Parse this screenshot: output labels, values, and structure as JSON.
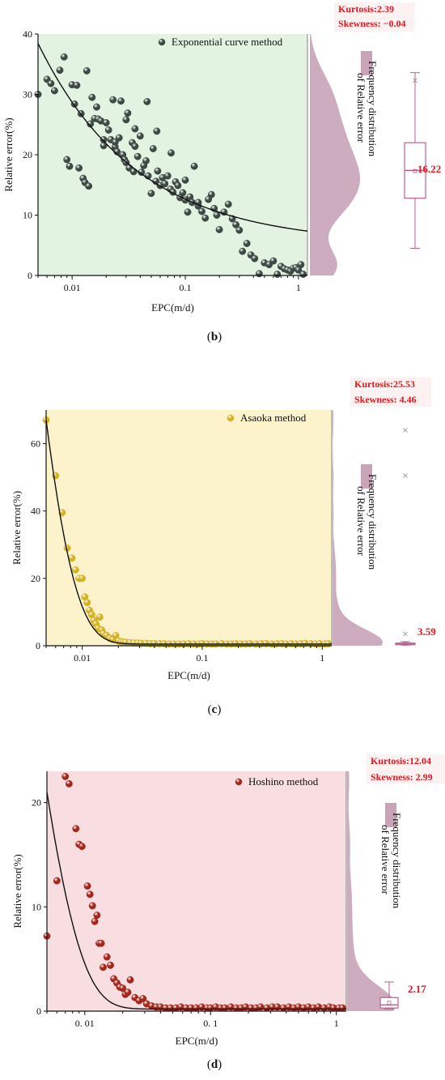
{
  "figure": {
    "background": "#ffffff"
  },
  "chart_data": [
    {
      "id": "b",
      "type": "scatter",
      "panel_label": "b",
      "xlabel": "EPC(m/d)",
      "ylabel": "Relative error(%)",
      "xscale": "log",
      "xlim": [
        0.005,
        1.2
      ],
      "ylim": [
        0,
        40
      ],
      "x_ticks": [
        0.01,
        0.1,
        1
      ],
      "x_tick_labels": [
        "0.01",
        "0.1",
        "1"
      ],
      "y_ticks": [
        0,
        10,
        20,
        30,
        40
      ],
      "y_tick_labels": [
        "0",
        "10",
        "20",
        "30",
        "40"
      ],
      "grid": false,
      "legend": {
        "position": "top-right",
        "label": "Exponential curve method"
      },
      "plot_bg": "#e3f3e2",
      "point_color": "#3d4a43",
      "kurtosis_label": "Kurtosis:2.39",
      "skewness_label": "Skewness: −0.04",
      "median_label": "16.22",
      "dist_label_line1": "Frequency distribution",
      "dist_label_line2": "of Relative error",
      "dist_color": "#c9a3b8",
      "box": {
        "min": 4.5,
        "q1": 12.8,
        "median": 17.4,
        "q3": 22.0,
        "max": 33.6,
        "mean": 17.3,
        "outliers": [
          32.3
        ]
      },
      "fit": {
        "a": 1.6,
        "b": 4.6,
        "c": 2.5
      },
      "series": [
        {
          "x": [
            0.005,
            0.006,
            0.0065,
            0.007,
            0.0078,
            0.0085,
            0.009,
            0.01,
            0.011,
            0.012,
            0.0125,
            0.013,
            0.0135,
            0.014,
            0.015,
            0.0158,
            0.0165,
            0.017,
            0.018,
            0.019,
            0.02,
            0.021,
            0.022,
            0.023,
            0.024,
            0.025,
            0.026,
            0.027,
            0.028,
            0.029,
            0.03,
            0.031,
            0.032,
            0.034,
            0.035,
            0.036,
            0.038,
            0.04,
            0.041,
            0.043,
            0.045,
            0.047,
            0.05,
            0.052,
            0.055,
            0.057,
            0.06,
            0.063,
            0.066,
            0.07,
            0.074,
            0.078,
            0.082,
            0.086,
            0.09,
            0.095,
            0.1,
            0.105,
            0.11,
            0.115,
            0.12,
            0.13,
            0.14,
            0.15,
            0.16,
            0.17,
            0.18,
            0.19,
            0.2,
            0.22,
            0.24,
            0.26,
            0.28,
            0.3,
            0.32,
            0.35,
            0.38,
            0.41,
            0.45,
            0.5,
            0.55,
            0.6,
            0.65,
            0.7,
            0.75,
            0.8,
            0.85,
            0.9,
            0.95,
            1.0,
            1.05,
            1.1,
            0.0095,
            0.0105,
            0.0115,
            0.0145,
            0.019,
            0.024,
            0.03,
            0.036,
            0.046,
            0.056,
            0.075,
            0.1,
            0.13
          ],
          "y": [
            30,
            32.5,
            31.8,
            30.6,
            34,
            36.2,
            19.2,
            31.6,
            31.5,
            26.8,
            16.1,
            15.4,
            33.9,
            14.8,
            29.5,
            26,
            27.9,
            25.9,
            25.6,
            21.5,
            25.3,
            24.1,
            22.5,
            29.1,
            21.3,
            20.5,
            22.8,
            28.9,
            20,
            19.2,
            18.7,
            26.9,
            17.8,
            22,
            17.2,
            21.4,
            19.7,
            23.1,
            17.1,
            18.2,
            19,
            16.5,
            13.6,
            21,
            15.6,
            17.3,
            14.9,
            16.2,
            15.2,
            16.5,
            14.3,
            13.8,
            15.5,
            14.9,
            12.9,
            13.7,
            12.5,
            10.5,
            13,
            12.1,
            18.1,
            11.5,
            10.6,
            9.5,
            12.6,
            13.4,
            11.1,
            10,
            7.6,
            10.5,
            11.8,
            9.4,
            8.4,
            7.5,
            4,
            5.3,
            3.4,
            2.8,
            0.3,
            2.1,
            1.8,
            2.4,
            0.2,
            1.5,
            1.1,
            0.9,
            0.7,
            1.2,
            1.3,
            0.9,
            1.8,
            0.2,
            18.1,
            28.4,
            17.8,
            25.1,
            22.5,
            22.1,
            25.8,
            24.3,
            28.8,
            23.9,
            20.3,
            15.8,
            12.1
          ]
        }
      ]
    },
    {
      "id": "c",
      "type": "scatter",
      "panel_label": "c",
      "xlabel": "EPC(m/d)",
      "ylabel": "Relative error(%)",
      "xscale": "log",
      "xlim": [
        0.005,
        1.2
      ],
      "ylim": [
        0,
        70
      ],
      "x_ticks": [
        0.01,
        0.1,
        1
      ],
      "x_tick_labels": [
        "0.01",
        "0.1",
        "1"
      ],
      "y_ticks": [
        0,
        20,
        40,
        60
      ],
      "y_tick_labels": [
        "0",
        "20",
        "40",
        "60"
      ],
      "grid": false,
      "legend": {
        "position": "top-right",
        "label": "Asaoka method"
      },
      "plot_bg": "#fcf2cc",
      "point_color": "#d4b322",
      "kurtosis_label": "Kurtosis:25.53",
      "skewness_label": "Skewness: 4.46",
      "median_label": "3.59",
      "dist_label_line1": "Frequency distribution",
      "dist_label_line2": "of Relative error",
      "dist_color": "#c9a3b8",
      "box": {
        "min": 0.2,
        "q1": 0.3,
        "median": 0.5,
        "q3": 0.8,
        "max": 1.2,
        "mean": 0.6,
        "outliers": [
          3.5,
          50.5,
          64
        ]
      },
      "fit": {
        "a": 0.5,
        "b": 66.5,
        "c": 0.0028
      },
      "series": [
        {
          "x": [
            0.005,
            0.006,
            0.0068,
            0.0075,
            0.0082,
            0.0088,
            0.0094,
            0.01,
            0.0105,
            0.011,
            0.0115,
            0.012,
            0.0125,
            0.013,
            0.0135,
            0.014,
            0.0145,
            0.015,
            0.016,
            0.017,
            0.018,
            0.019,
            0.02,
            0.021,
            0.022,
            0.023,
            0.025,
            0.027,
            0.029,
            0.031,
            0.034,
            0.037,
            0.04,
            0.044,
            0.048,
            0.053,
            0.058,
            0.064,
            0.07,
            0.077,
            0.085,
            0.094,
            0.1,
            0.11,
            0.12,
            0.13,
            0.145,
            0.16,
            0.175,
            0.19,
            0.21,
            0.23,
            0.25,
            0.28,
            0.31,
            0.34,
            0.38,
            0.42,
            0.46,
            0.5,
            0.55,
            0.6,
            0.66,
            0.72,
            0.8,
            0.88,
            0.95,
            1.05,
            1.12
          ],
          "y": [
            67,
            50.5,
            39.5,
            29,
            26,
            22.5,
            20,
            20,
            14.5,
            12.8,
            10.5,
            9.2,
            7.5,
            6.5,
            5.2,
            8.5,
            4.7,
            3.6,
            3,
            2.2,
            1.8,
            3,
            1.4,
            1.2,
            1.1,
            1,
            0.9,
            0.8,
            0.8,
            0.7,
            0.7,
            0.6,
            0.6,
            0.6,
            0.6,
            0.5,
            0.5,
            0.5,
            0.5,
            0.6,
            0.5,
            0.5,
            0.6,
            0.5,
            0.5,
            0.5,
            0.6,
            0.5,
            0.5,
            0.6,
            0.5,
            0.5,
            0.6,
            0.5,
            0.6,
            0.6,
            0.5,
            0.6,
            0.6,
            0.5,
            0.6,
            0.5,
            0.6,
            0.7,
            0.6,
            0.5,
            0.6,
            0.5,
            0.6
          ]
        }
      ]
    },
    {
      "id": "d",
      "type": "scatter",
      "panel_label": "d",
      "xlabel": "EPC(m/d)",
      "ylabel": "Relative error(%)",
      "xscale": "log",
      "xlim": [
        0.005,
        1.2
      ],
      "ylim": [
        0,
        23
      ],
      "x_ticks": [
        0.01,
        0.1,
        1
      ],
      "x_tick_labels": [
        "0. 01",
        "0. 1",
        "1"
      ],
      "y_ticks": [
        0,
        10,
        20
      ],
      "y_tick_labels": [
        "0",
        "10",
        "20"
      ],
      "grid": false,
      "legend": {
        "position": "top-right",
        "label": "Hoshino method"
      },
      "plot_bg": "#f8dee1",
      "point_color": "#a3271b",
      "kurtosis_label": "Kurtosis:12.04",
      "skewness_label": "Skewness: 2.99",
      "median_label": "2.17",
      "dist_label_line1": "Frequency distribution",
      "dist_label_line2": "of Relative error",
      "dist_color": "#c9a3b8",
      "box": {
        "min": 0.2,
        "q1": 0.3,
        "median": 0.6,
        "q3": 1.3,
        "max": 2.8,
        "mean": 0.8,
        "outliers": []
      },
      "fit": {
        "a": 0.2,
        "b": 20.8,
        "c": 0.0032
      },
      "series": [
        {
          "x": [
            0.005,
            0.006,
            0.007,
            0.0075,
            0.0085,
            0.009,
            0.0095,
            0.0105,
            0.011,
            0.0115,
            0.012,
            0.0125,
            0.013,
            0.0135,
            0.014,
            0.015,
            0.016,
            0.017,
            0.018,
            0.019,
            0.02,
            0.021,
            0.022,
            0.023,
            0.025,
            0.027,
            0.029,
            0.031,
            0.034,
            0.037,
            0.04,
            0.044,
            0.048,
            0.053,
            0.058,
            0.064,
            0.07,
            0.077,
            0.085,
            0.094,
            0.1,
            0.11,
            0.12,
            0.13,
            0.145,
            0.16,
            0.175,
            0.19,
            0.21,
            0.23,
            0.25,
            0.28,
            0.31,
            0.34,
            0.38,
            0.42,
            0.46,
            0.5,
            0.55,
            0.6,
            0.66,
            0.72,
            0.8,
            0.88,
            0.95,
            1.05,
            1.12
          ],
          "y": [
            7.2,
            12.5,
            22.5,
            21.8,
            17.5,
            16,
            15.8,
            12,
            11.2,
            10.1,
            8.6,
            9.2,
            6.5,
            6.5,
            4.2,
            5.2,
            4.4,
            3.1,
            2.7,
            2.3,
            2.2,
            1.6,
            1.8,
            3,
            1.3,
            1,
            1.2,
            0.7,
            0.5,
            0.4,
            0.4,
            0.3,
            0.3,
            0.3,
            0.4,
            0.3,
            0.3,
            0.3,
            0.4,
            0.3,
            0.3,
            0.4,
            0.3,
            0.3,
            0.4,
            0.3,
            0.3,
            0.4,
            0.3,
            0.3,
            0.4,
            0.3,
            0.4,
            0.4,
            0.3,
            0.4,
            0.3,
            0.4,
            0.3,
            0.4,
            0.3,
            0.4,
            0.3,
            0.4,
            0.3,
            0.3,
            0.3
          ]
        }
      ]
    }
  ]
}
